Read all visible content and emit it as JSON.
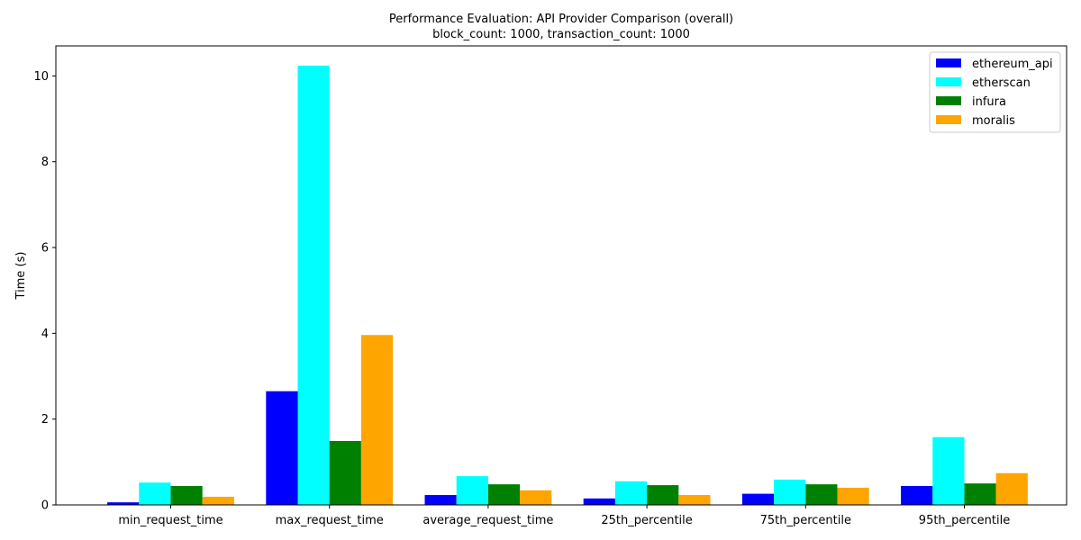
{
  "chart_data": {
    "type": "bar",
    "title": "Performance Evaluation: API Provider Comparison (overall)",
    "subtitle": "block_count: 1000, transaction_count: 1000",
    "xlabel": "",
    "ylabel": "Time (s)",
    "ylim": [
      0,
      10.7
    ],
    "yticks": [
      0,
      2,
      4,
      6,
      8,
      10
    ],
    "grid": false,
    "legend_position": "top-right",
    "categories": [
      "min_request_time",
      "max_request_time",
      "average_request_time",
      "25th_percentile",
      "75th_percentile",
      "95th_percentile"
    ],
    "series": [
      {
        "name": "ethereum_api",
        "color": "#0000ff",
        "values": [
          0.06,
          2.65,
          0.23,
          0.15,
          0.26,
          0.44
        ]
      },
      {
        "name": "etherscan",
        "color": "#00ffff",
        "values": [
          0.52,
          10.24,
          0.67,
          0.55,
          0.59,
          1.58
        ]
      },
      {
        "name": "infura",
        "color": "#008000",
        "values": [
          0.44,
          1.49,
          0.48,
          0.46,
          0.48,
          0.5
        ]
      },
      {
        "name": "moralis",
        "color": "#ffa500",
        "values": [
          0.19,
          3.96,
          0.34,
          0.23,
          0.4,
          0.74
        ]
      }
    ]
  }
}
